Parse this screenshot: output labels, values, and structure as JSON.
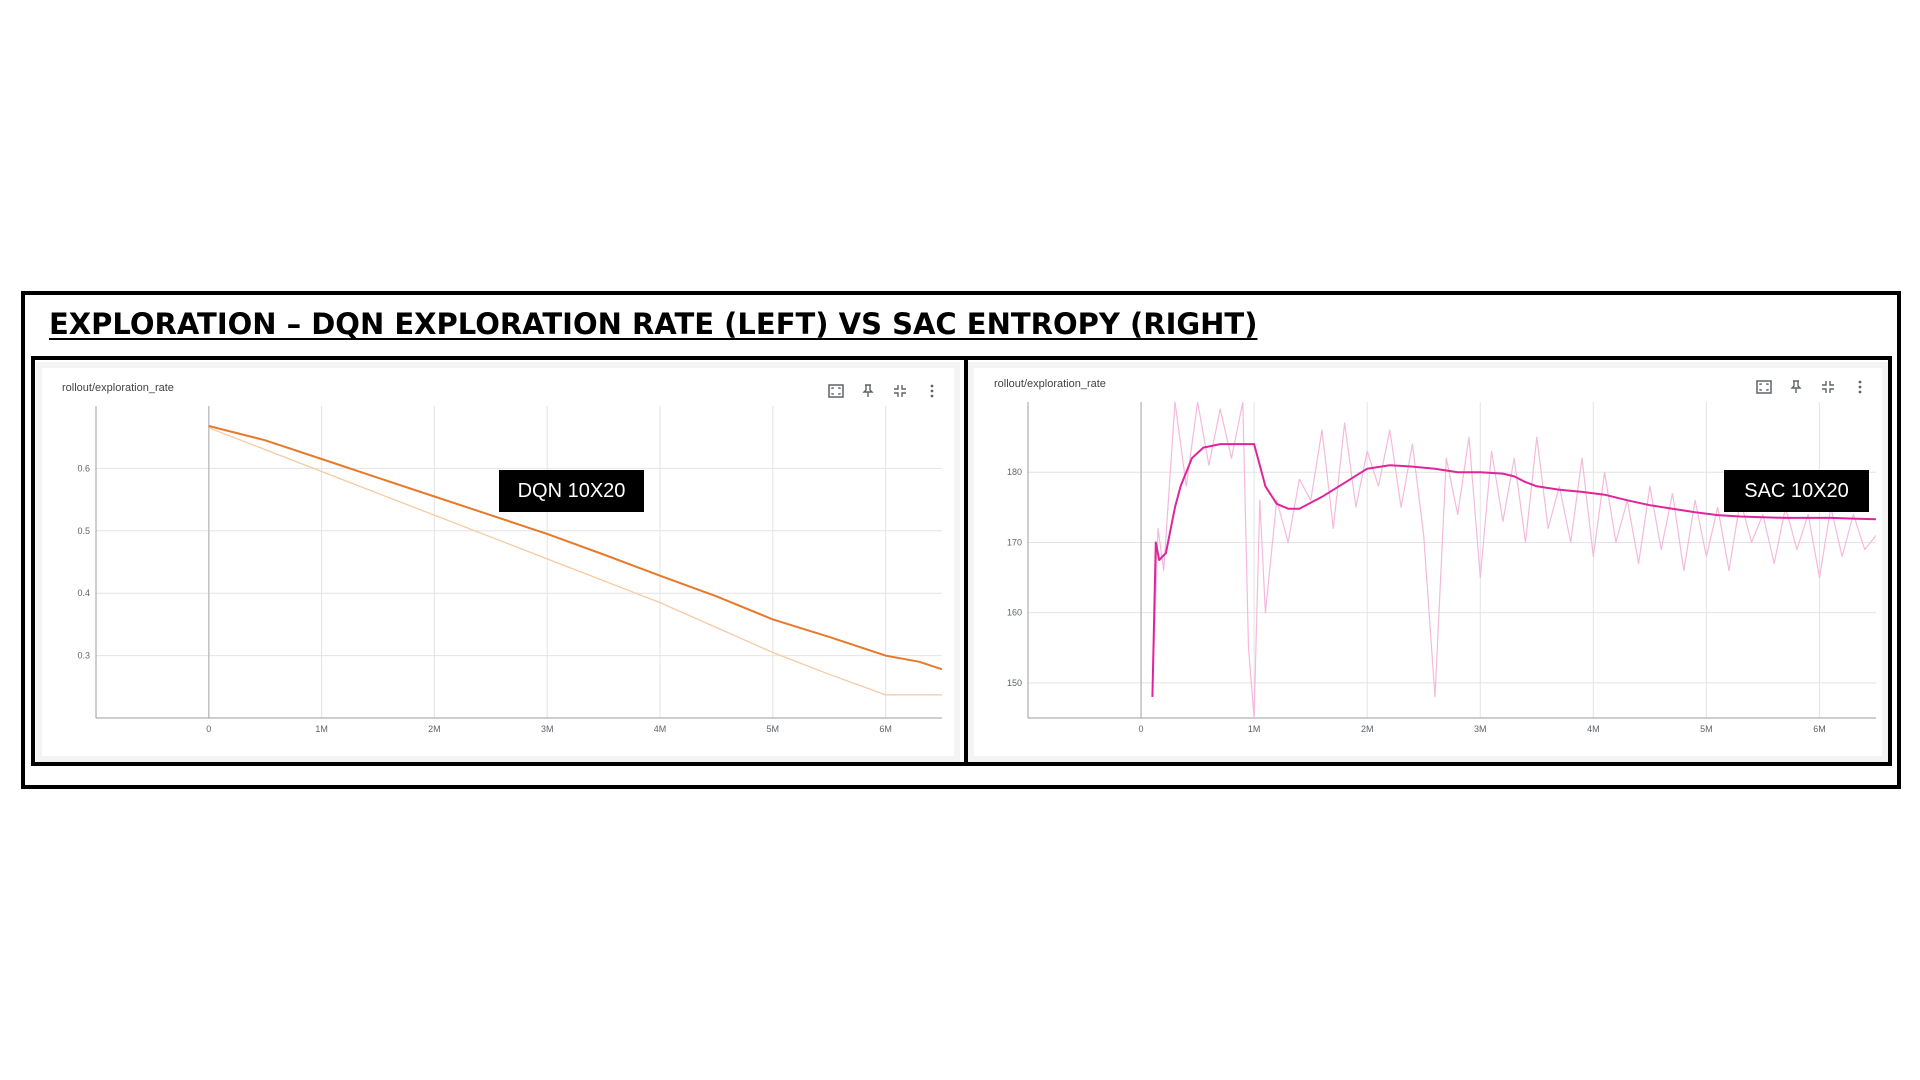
{
  "title": "EXPLORATION – DQN EXPLORATION RATE (LEFT) VS SAC ENTROPY (RIGHT)",
  "colors": {
    "dqn_smoothed": "#e8792a",
    "dqn_raw": "#f7c9a2",
    "sac_smoothed": "#e0259a",
    "sac_raw": "#f5b9dc",
    "grid": "#e4e4e4",
    "axis": "#9e9e9e"
  },
  "toolbar_icons": [
    "fullscreen-icon",
    "pin-icon",
    "fit-domain-icon",
    "more-vert-icon"
  ],
  "chart_data": [
    {
      "type": "line",
      "card_title": "rollout/exploration_rate",
      "badge": "DQN 10X20",
      "xlim": [
        -1000000,
        6500000
      ],
      "ylim": [
        0.2,
        0.7
      ],
      "x_ticks": [
        0,
        1000000,
        2000000,
        3000000,
        4000000,
        5000000,
        6000000
      ],
      "x_tick_labels": [
        "0",
        "1M",
        "2M",
        "3M",
        "4M",
        "5M",
        "6M"
      ],
      "y_ticks": [
        0.3,
        0.4,
        0.5,
        0.6
      ],
      "y_tick_labels": [
        "0.3",
        "0.4",
        "0.5",
        "0.6"
      ],
      "grid": true,
      "series": [
        {
          "role": "raw",
          "x": [
            0,
            1000000,
            2000000,
            3000000,
            4000000,
            5000000,
            5500000,
            6000000,
            6500000
          ],
          "y": [
            0.665,
            0.595,
            0.525,
            0.455,
            0.385,
            0.305,
            0.27,
            0.237,
            0.237
          ]
        },
        {
          "role": "smoothed",
          "x": [
            0,
            500000,
            1000000,
            1500000,
            2000000,
            2500000,
            3000000,
            3500000,
            4000000,
            4500000,
            5000000,
            5500000,
            6000000,
            6300000,
            6500000
          ],
          "y": [
            0.668,
            0.645,
            0.615,
            0.585,
            0.555,
            0.525,
            0.495,
            0.462,
            0.428,
            0.395,
            0.358,
            0.33,
            0.3,
            0.29,
            0.278
          ]
        }
      ]
    },
    {
      "type": "line",
      "card_title": "rollout/exploration_rate",
      "badge": "SAC 10X20",
      "xlim": [
        -1000000,
        6500000
      ],
      "ylim": [
        145,
        190
      ],
      "x_ticks": [
        0,
        1000000,
        2000000,
        3000000,
        4000000,
        5000000,
        6000000
      ],
      "x_tick_labels": [
        "0",
        "1M",
        "2M",
        "3M",
        "4M",
        "5M",
        "6M"
      ],
      "y_ticks": [
        150,
        160,
        170,
        180
      ],
      "y_tick_labels": [
        "150",
        "160",
        "170",
        "180"
      ],
      "grid": true,
      "series": [
        {
          "role": "raw",
          "x": [
            100000,
            150000,
            200000,
            300000,
            400000,
            500000,
            600000,
            700000,
            800000,
            900000,
            950000,
            1000000,
            1050000,
            1100000,
            1200000,
            1300000,
            1400000,
            1500000,
            1600000,
            1700000,
            1800000,
            1900000,
            2000000,
            2100000,
            2200000,
            2300000,
            2400000,
            2500000,
            2600000,
            2700000,
            2800000,
            2900000,
            3000000,
            3100000,
            3200000,
            3300000,
            3400000,
            3500000,
            3600000,
            3700000,
            3800000,
            3900000,
            4000000,
            4100000,
            4200000,
            4300000,
            4400000,
            4500000,
            4600000,
            4700000,
            4800000,
            4900000,
            5000000,
            5100000,
            5200000,
            5300000,
            5400000,
            5500000,
            5600000,
            5700000,
            5800000,
            5900000,
            6000000,
            6100000,
            6200000,
            6300000,
            6400000,
            6500000
          ],
          "y": [
            148,
            172,
            166,
            190,
            178,
            190,
            181,
            189,
            182,
            190,
            155,
            145,
            176,
            160,
            176,
            170,
            179,
            176,
            186,
            172,
            187,
            175,
            183,
            178,
            186,
            175,
            184,
            171,
            148,
            182,
            174,
            185,
            165,
            183,
            173,
            182,
            170,
            185,
            172,
            178,
            170,
            182,
            168,
            180,
            170,
            176,
            167,
            178,
            169,
            177,
            166,
            176,
            168,
            175,
            166,
            176,
            170,
            174,
            167,
            175,
            169,
            174,
            165,
            175,
            168,
            174,
            169,
            171
          ]
        },
        {
          "role": "smoothed",
          "x": [
            100000,
            130000,
            160000,
            220000,
            300000,
            350000,
            450000,
            550000,
            700000,
            900000,
            1000000,
            1050000,
            1100000,
            1200000,
            1300000,
            1400000,
            1600000,
            1800000,
            1900000,
            2000000,
            2200000,
            2400000,
            2600000,
            2800000,
            3000000,
            3200000,
            3300000,
            3400000,
            3500000,
            3700000,
            3900000,
            4100000,
            4300000,
            4500000,
            4700000,
            4900000,
            5100000,
            5300000,
            5500000,
            5700000,
            5900000,
            6100000,
            6300000,
            6500000
          ],
          "y": [
            148,
            170,
            167.5,
            168.5,
            175,
            178,
            182,
            183.5,
            184,
            184,
            184,
            181,
            178,
            175.5,
            174.8,
            174.8,
            176.5,
            178.5,
            179.5,
            180.5,
            181,
            180.8,
            180.5,
            180,
            180,
            179.8,
            179.4,
            178.6,
            178,
            177.5,
            177.2,
            176.8,
            176,
            175.3,
            174.8,
            174.3,
            173.9,
            173.7,
            173.6,
            173.5,
            173.5,
            173.5,
            173.4,
            173.3
          ]
        }
      ]
    }
  ]
}
